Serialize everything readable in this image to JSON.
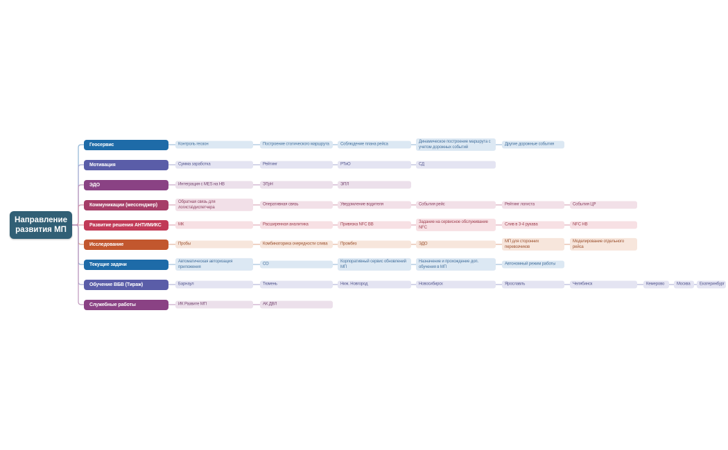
{
  "root": {
    "label": "Направление развития МП",
    "fill": "#315F75",
    "text_color": "#FFFFFF"
  },
  "branches": [
    {
      "label": "Геосервис",
      "fill": "#1E6BA8",
      "line_color": "#8FB3D4",
      "child_fill": "#DCE8F3",
      "child_text": "#46729E",
      "children": [
        "Контроль геозон",
        "Построение статического маршрута",
        "Соблюдение плана рейса",
        "Динамическое построение маршрута с учетом дорожных событий",
        "Другие дорожные события"
      ]
    },
    {
      "label": "Мотивация",
      "fill": "#5A5DA8",
      "line_color": "#A7A9D2",
      "child_fill": "#E4E4F2",
      "child_text": "#55588F",
      "children": [
        "Сумма заработка",
        "Рейтинг",
        "РТиО",
        "СД"
      ]
    },
    {
      "label": "ЭДО",
      "fill": "#8A4284",
      "line_color": "#BE96BC",
      "child_fill": "#ECE0EB",
      "child_text": "#74456F",
      "children": [
        "Интеграция с MES на НВ",
        "ЭТрН",
        "ЭПЛ"
      ]
    },
    {
      "label": "Коммуникации (мессенджер)",
      "fill": "#A63E68",
      "line_color": "#D095AE",
      "child_fill": "#F2E0E8",
      "child_text": "#8C4260",
      "children": [
        "Обратная связь для логиста\\диспетчера",
        "Оперативная связь",
        "Уведомление водителя",
        "События рейс",
        "Рейтинг логиста",
        "События ЦР"
      ]
    },
    {
      "label": "Развитие решения АНТИМИКС",
      "fill": "#C13A57",
      "line_color": "#DD9AA8",
      "child_fill": "#F7E0E4",
      "child_text": "#9E4050",
      "children": [
        "МК",
        "Расширенная аналитика",
        "Привязка NFC ВВ",
        "Задание на сервисное обслуживание NFC",
        "Слив в 3-4 рукава",
        "NFC НВ"
      ]
    },
    {
      "label": "Исследование",
      "fill": "#C2572E",
      "line_color": "#DFA689",
      "child_fill": "#F7E6DC",
      "child_text": "#9C5230",
      "children": [
        "Пробы",
        "Комбинаторика очередности слива",
        "Промбез",
        "ЭДО",
        "МП для сторонних перевозчиков",
        "Моделирование отдельного рейса"
      ]
    },
    {
      "label": "Текущие задачи",
      "fill": "#1E6BA8",
      "line_color": "#8FB3D4",
      "child_fill": "#DCE8F3",
      "child_text": "#46729E",
      "children": [
        "Автоматическая авторизация приложения",
        "СО",
        "Корпоративный сервис обновлений МП",
        "Назначение и прохождение доп. обучения в МП",
        "Автономный режим работы"
      ]
    },
    {
      "label": "Обучение ВБВ (Тираж)",
      "fill": "#5A5DA8",
      "line_color": "#A7A9D2",
      "child_fill": "#E4E4F2",
      "child_text": "#55588F",
      "children": [
        "Барнаул",
        "Тюмень",
        "Ниж. Новгород",
        "Новосибирск",
        "Ярославль",
        "Челябинск",
        "Кемерово",
        "Москва",
        "Екатеринбург"
      ]
    },
    {
      "label": "Служебные работы",
      "fill": "#8A4284",
      "line_color": "#BE96BC",
      "child_fill": "#ECE0EB",
      "child_text": "#74456F",
      "children": [
        "ИК Развите МП",
        "АК ДВЛ"
      ]
    }
  ]
}
